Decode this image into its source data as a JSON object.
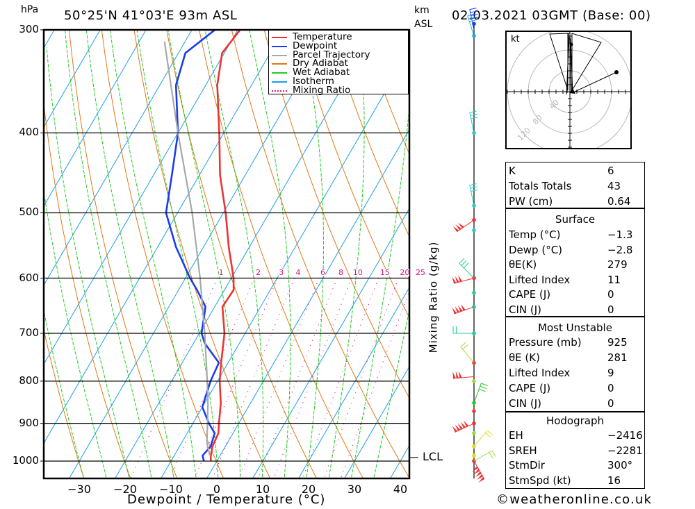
{
  "header": {
    "pressure_unit": "hPa",
    "location": "50°25'N 41°03'E 93m ASL",
    "height_unit_line1": "km",
    "height_unit_line2": "ASL",
    "datetime": "02.03.2021 03GMT (Base: 00)"
  },
  "footer": {
    "copyright": "©weatheronline.co.uk"
  },
  "chart_data": {
    "type": "line",
    "subtype": "skew-T log-p sounding",
    "title": "50°25'N 41°03'E 93m ASL",
    "xlabel": "Dewpoint / Temperature (°C)",
    "ylabel": "hPa",
    "secondary_ylabel": "Mixing Ratio (g/kg)",
    "xlim": [
      -38,
      42
    ],
    "ylim": [
      1050,
      300
    ],
    "x_ticks": [
      -30,
      -20,
      -10,
      0,
      10,
      20,
      30,
      40
    ],
    "x_tick_labels": [
      "−30",
      "−20",
      "−10",
      "0",
      "10",
      "20",
      "30",
      "40"
    ],
    "y_ticks": [
      300,
      400,
      500,
      600,
      700,
      800,
      900,
      1000
    ],
    "y_tick_labels": [
      "300",
      "400",
      "500",
      "600",
      "700",
      "800",
      "900",
      "1000"
    ],
    "mixing_ratio_labels": [
      "1",
      "2",
      "3",
      "4",
      "6",
      "8",
      "10",
      "15",
      "20",
      "25"
    ],
    "mixing_ratio_values": [
      1,
      2,
      3,
      4,
      6,
      8,
      10,
      15,
      20,
      25
    ],
    "mixing_ratio_label_pressure": 600,
    "lcl_label": "LCL",
    "lcl_pressure": 990,
    "legend_position": "top-right",
    "legend": [
      {
        "label": "Temperature",
        "color": "#ee3333",
        "style": "solid"
      },
      {
        "label": "Dewpoint",
        "color": "#1a3cee",
        "style": "solid"
      },
      {
        "label": "Parcel Trajectory",
        "color": "#a8a8a8",
        "style": "solid"
      },
      {
        "label": "Dry Adiabat",
        "color": "#e07818",
        "style": "solid"
      },
      {
        "label": "Wet Adiabat",
        "color": "#22cc22",
        "style": "dashed"
      },
      {
        "label": "Isotherm",
        "color": "#1a9ee8",
        "style": "solid"
      },
      {
        "label": "Mixing Ratio",
        "color": "#e0108a",
        "style": "dotted"
      }
    ],
    "series": [
      {
        "name": "Temperature",
        "color": "#ee3333",
        "points": [
          {
            "p": 1000,
            "t": -1.3
          },
          {
            "p": 985,
            "t": -2.0
          },
          {
            "p": 960,
            "t": -2.8
          },
          {
            "p": 925,
            "t": -3.2
          },
          {
            "p": 900,
            "t": -4.3
          },
          {
            "p": 850,
            "t": -6.5
          },
          {
            "p": 800,
            "t": -9.5
          },
          {
            "p": 760,
            "t": -11.5
          },
          {
            "p": 700,
            "t": -14.5
          },
          {
            "p": 650,
            "t": -18.3
          },
          {
            "p": 620,
            "t": -18.0
          },
          {
            "p": 600,
            "t": -19.5
          },
          {
            "p": 550,
            "t": -24.5
          },
          {
            "p": 500,
            "t": -29.5
          },
          {
            "p": 450,
            "t": -35.5
          },
          {
            "p": 400,
            "t": -41.0
          },
          {
            "p": 350,
            "t": -47.5
          },
          {
            "p": 320,
            "t": -50.5
          },
          {
            "p": 300,
            "t": -49.5
          }
        ]
      },
      {
        "name": "Dewpoint",
        "color": "#1a3cee",
        "points": [
          {
            "p": 1000,
            "t": -2.8
          },
          {
            "p": 985,
            "t": -3.8
          },
          {
            "p": 960,
            "t": -3.2
          },
          {
            "p": 925,
            "t": -4.0
          },
          {
            "p": 900,
            "t": -6.5
          },
          {
            "p": 860,
            "t": -10.0
          },
          {
            "p": 800,
            "t": -11.5
          },
          {
            "p": 760,
            "t": -12.0
          },
          {
            "p": 720,
            "t": -17.5
          },
          {
            "p": 700,
            "t": -19.5
          },
          {
            "p": 650,
            "t": -22.0
          },
          {
            "p": 620,
            "t": -26.0
          },
          {
            "p": 600,
            "t": -29.0
          },
          {
            "p": 550,
            "t": -36.0
          },
          {
            "p": 500,
            "t": -42.5
          },
          {
            "p": 450,
            "t": -46.0
          },
          {
            "p": 400,
            "t": -50.0
          },
          {
            "p": 350,
            "t": -56.5
          },
          {
            "p": 320,
            "t": -58.5
          },
          {
            "p": 300,
            "t": -55.0
          }
        ]
      },
      {
        "name": "Parcel Trajectory",
        "color": "#a8a8a8",
        "points": [
          {
            "p": 985,
            "t": -2.2
          },
          {
            "p": 950,
            "t": -4.5
          },
          {
            "p": 900,
            "t": -6.8
          },
          {
            "p": 850,
            "t": -9.3
          },
          {
            "p": 800,
            "t": -12.2
          },
          {
            "p": 700,
            "t": -18.8
          },
          {
            "p": 600,
            "t": -26.8
          },
          {
            "p": 500,
            "t": -36.8
          },
          {
            "p": 400,
            "t": -50.0
          },
          {
            "p": 310,
            "t": -64.5
          }
        ]
      }
    ],
    "wind_profile": {
      "label_color_scale": "barb colour by height",
      "levels": [
        {
          "p": 1000,
          "color": "#ee3333"
        },
        {
          "p": 985,
          "color": "#dddd22"
        },
        {
          "p": 960,
          "color": "#dddd22"
        },
        {
          "p": 925,
          "color": "#99dd33"
        },
        {
          "p": 900,
          "color": "#ee3333"
        },
        {
          "p": 870,
          "color": "#ee3333"
        },
        {
          "p": 850,
          "color": "#22cc22"
        },
        {
          "p": 800,
          "color": "#99dd33"
        },
        {
          "p": 760,
          "color": "#ee3333"
        },
        {
          "p": 700,
          "color": "#22cc99"
        },
        {
          "p": 650,
          "color": "#22cc99"
        },
        {
          "p": 625,
          "color": "#22cc99"
        },
        {
          "p": 600,
          "color": "#ee3333"
        },
        {
          "p": 525,
          "color": "#22cccc"
        },
        {
          "p": 510,
          "color": "#ee3333"
        },
        {
          "p": 490,
          "color": "#22cccc"
        },
        {
          "p": 400,
          "color": "#22cccc"
        },
        {
          "p": 305,
          "color": "#1aa8e8"
        },
        {
          "p": 295,
          "color": "#1a3cee"
        }
      ]
    },
    "hodograph": {
      "unit_label": "kt",
      "ring_labels": [
        "40",
        "80",
        "120"
      ],
      "ring_values_kt": [
        40,
        80,
        120
      ]
    }
  },
  "indices": {
    "general": [
      {
        "label": "K",
        "value": "6"
      },
      {
        "label": "Totals Totals",
        "value": "43"
      },
      {
        "label": "PW (cm)",
        "value": "0.64"
      }
    ],
    "surface": {
      "title": "Surface",
      "rows": [
        {
          "label": "Temp (°C)",
          "value": "−1.3"
        },
        {
          "label": "Dewp (°C)",
          "value": "−2.8"
        },
        {
          "label": "θE(K)",
          "value": "279"
        },
        {
          "label": "Lifted Index",
          "value": "11"
        },
        {
          "label": "CAPE (J)",
          "value": "0"
        },
        {
          "label": "CIN (J)",
          "value": "0"
        }
      ]
    },
    "most_unstable": {
      "title": "Most Unstable",
      "rows": [
        {
          "label": "Pressure (mb)",
          "value": "925"
        },
        {
          "label": "θE (K)",
          "value": "281"
        },
        {
          "label": "Lifted Index",
          "value": "9"
        },
        {
          "label": "CAPE (J)",
          "value": "0"
        },
        {
          "label": "CIN (J)",
          "value": "0"
        }
      ]
    },
    "hodograph": {
      "title": "Hodograph",
      "rows": [
        {
          "label": "EH",
          "value": "−2416"
        },
        {
          "label": "SREH",
          "value": "−2281"
        },
        {
          "label": "StmDir",
          "value": "300°"
        },
        {
          "label": "StmSpd (kt)",
          "value": "16"
        }
      ]
    }
  }
}
